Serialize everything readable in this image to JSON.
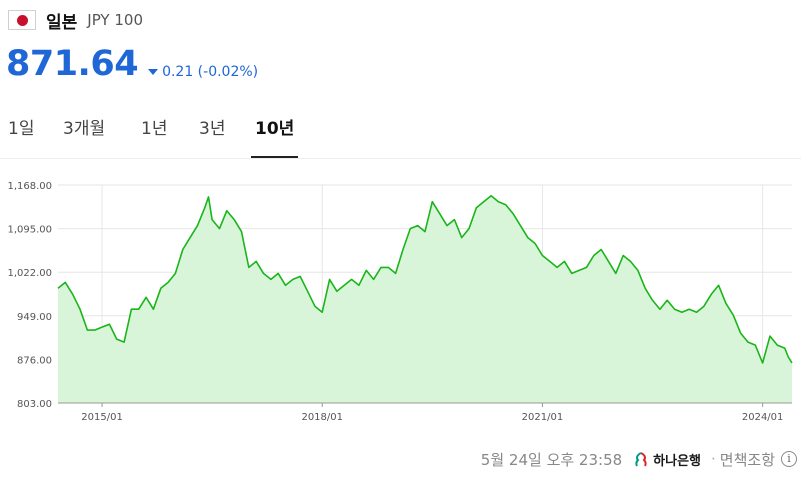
{
  "header": {
    "country": "일본",
    "code": "JPY 100"
  },
  "price": {
    "value": "871.64",
    "change": "0.21 (-0.02%)",
    "direction": "down"
  },
  "tabs": [
    {
      "label": "1일",
      "active": false
    },
    {
      "label": "3개월",
      "active": false
    },
    {
      "label": "1년",
      "active": false
    },
    {
      "label": "3년",
      "active": false
    },
    {
      "label": "10년",
      "active": true
    }
  ],
  "footer": {
    "timestamp": "5월 24일 오후 23:58",
    "bank": "하나은행",
    "disclaimer": "면책조항",
    "separator": "·"
  },
  "colors": {
    "accent": "#1f66d6",
    "line": "#1ab51a",
    "area": "#d9f5d9",
    "flag_red": "#c8102e"
  },
  "chart_data": {
    "type": "area",
    "title": "",
    "xlabel": "",
    "ylabel": "",
    "ylim": [
      803,
      1168
    ],
    "yticks": [
      "803.00",
      "876.00",
      "949.00",
      "1,022.00",
      "1,095.00",
      "1,168.00"
    ],
    "ytick_values": [
      803,
      876,
      949,
      1022,
      1095,
      1168
    ],
    "xticks": [
      "2015/01",
      "2018/01",
      "2021/01",
      "2024/01"
    ],
    "xtick_values": [
      2015.0,
      2018.0,
      2021.0,
      2024.0
    ],
    "xlim": [
      2014.4,
      2024.4
    ],
    "grid": true,
    "series": [
      {
        "x": [
          2014.4,
          2014.5,
          2014.6,
          2014.7,
          2014.8,
          2014.9,
          2015.0,
          2015.1,
          2015.2,
          2015.3,
          2015.4,
          2015.5,
          2015.6,
          2015.7,
          2015.8,
          2015.9,
          2016.0,
          2016.1,
          2016.2,
          2016.3,
          2016.4,
          2016.45,
          2016.5,
          2016.6,
          2016.7,
          2016.8,
          2016.9,
          2017.0,
          2017.1,
          2017.2,
          2017.3,
          2017.4,
          2017.5,
          2017.6,
          2017.7,
          2017.8,
          2017.9,
          2018.0,
          2018.1,
          2018.2,
          2018.3,
          2018.4,
          2018.5,
          2018.6,
          2018.7,
          2018.8,
          2018.9,
          2019.0,
          2019.1,
          2019.2,
          2019.3,
          2019.4,
          2019.5,
          2019.6,
          2019.7,
          2019.8,
          2019.9,
          2020.0,
          2020.1,
          2020.2,
          2020.3,
          2020.4,
          2020.5,
          2020.6,
          2020.7,
          2020.8,
          2020.9,
          2021.0,
          2021.1,
          2021.2,
          2021.3,
          2021.4,
          2021.5,
          2021.6,
          2021.7,
          2021.8,
          2021.9,
          2022.0,
          2022.1,
          2022.2,
          2022.3,
          2022.4,
          2022.5,
          2022.6,
          2022.7,
          2022.8,
          2022.9,
          2023.0,
          2023.1,
          2023.2,
          2023.3,
          2023.4,
          2023.5,
          2023.6,
          2023.7,
          2023.8,
          2023.9,
          2024.0,
          2024.1,
          2024.2,
          2024.3,
          2024.35,
          2024.4
        ],
        "values": [
          995,
          1005,
          985,
          960,
          925,
          925,
          930,
          935,
          910,
          905,
          960,
          960,
          980,
          960,
          995,
          1005,
          1020,
          1060,
          1080,
          1100,
          1130,
          1148,
          1110,
          1095,
          1125,
          1110,
          1090,
          1030,
          1040,
          1020,
          1010,
          1020,
          1000,
          1010,
          1015,
          990,
          965,
          955,
          1010,
          990,
          1000,
          1010,
          1000,
          1025,
          1010,
          1030,
          1030,
          1020,
          1060,
          1095,
          1100,
          1090,
          1140,
          1120,
          1100,
          1110,
          1080,
          1095,
          1130,
          1140,
          1150,
          1140,
          1135,
          1120,
          1100,
          1080,
          1070,
          1050,
          1040,
          1030,
          1040,
          1020,
          1025,
          1030,
          1050,
          1060,
          1040,
          1020,
          1050,
          1040,
          1025,
          995,
          975,
          960,
          975,
          960,
          955,
          960,
          955,
          965,
          985,
          1000,
          970,
          950,
          920,
          905,
          900,
          870,
          915,
          900,
          895,
          880,
          870
        ]
      }
    ]
  }
}
